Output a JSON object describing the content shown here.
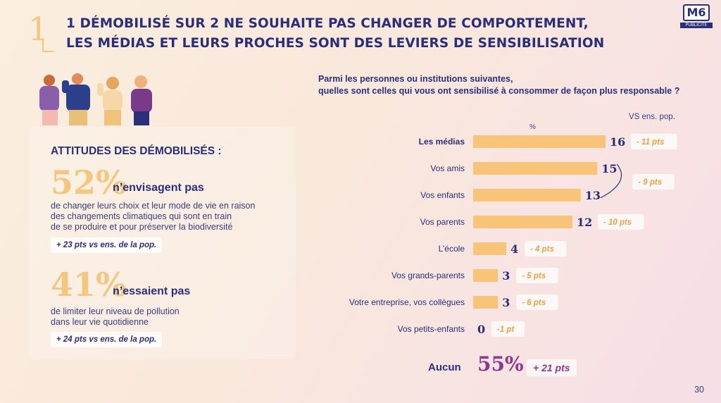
{
  "header": {
    "section_number": "1",
    "title_line1": "1 DÉMOBILISÉ SUR 2 NE SOUHAITE PAS CHANGER DE COMPORTEMENT,",
    "title_line2": "LES MÉDIAS ET LEURS PROCHES SONT DES LEVIERS DE SENSIBILISATION",
    "logo_text": "M6",
    "logo_sub": "PUBLICITÉ"
  },
  "left": {
    "title": "ATTITUDES DES DÉMOBILISÉS :",
    "stats": [
      {
        "value": "52%",
        "headline": "n’envisagent pas",
        "desc": [
          "de changer leurs choix et leur mode de vie en raison",
          "des changements climatiques qui sont en train",
          "de se produire et pour préserver la biodiversité"
        ],
        "delta": "+ 23 pts vs ens. de la pop."
      },
      {
        "value": "41%",
        "headline": "n’essaient pas",
        "desc": [
          "de limiter leur niveau de pollution",
          "dans leur vie quotidienne"
        ],
        "delta": "+ 24 pts vs ens. de la pop."
      }
    ]
  },
  "chart_data": {
    "type": "bar",
    "orientation": "horizontal",
    "title": "Parmi les personnes ou institutions suivantes, quelles sont celles qui vous ont sensibilisé à consommer de façon plus responsable ?",
    "title_lines": [
      "Parmi les personnes ou institutions suivantes,",
      "quelles sont celles qui vous ont sensibilisé à consommer de façon plus responsable ?"
    ],
    "unit_label": "%",
    "comparison_label": "VS ens. pop.",
    "categories": [
      "Les médias",
      "Vos amis",
      "Vos enfants",
      "Vos parents",
      "L’école",
      "Vos grands-parents",
      "Votre entreprise, vos collègues",
      "Vos petits-enfants"
    ],
    "values": [
      16,
      15,
      13,
      12,
      4,
      3,
      3,
      0
    ],
    "deltas": [
      "- 11 pts",
      "- 9 pts",
      "- 10 pts",
      "- 4 pts",
      "- 5 pts",
      "- 6 pts",
      "-1 pt"
    ],
    "delta_rows": [
      [
        0
      ],
      [
        1,
        2
      ],
      [
        3
      ],
      [
        4
      ],
      [
        5
      ],
      [
        6
      ],
      [
        7
      ]
    ],
    "bold_categories": [
      "Les médias"
    ],
    "bar_color": "#f8c47a",
    "xlim": [
      0,
      16
    ]
  },
  "aucun": {
    "label": "Aucun",
    "value": "55%",
    "delta": "+ 21 pts"
  },
  "colors": {
    "navy": "#2b2f7a",
    "accent": "#f5c77e",
    "purple": "#8b3a8c",
    "bar": "#f8c47a"
  },
  "page_number": "30"
}
